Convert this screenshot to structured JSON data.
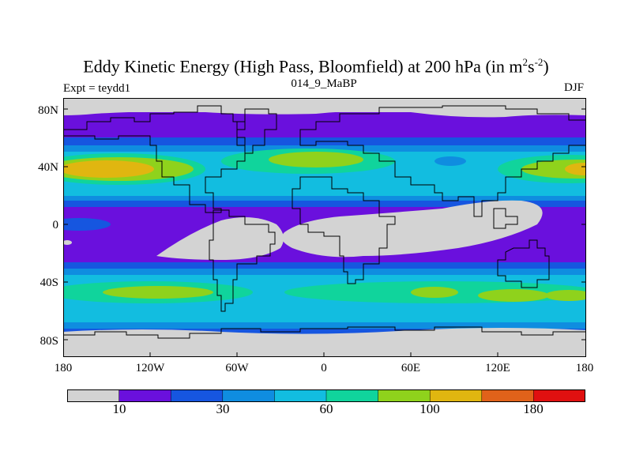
{
  "header": {
    "title_main": "Eddy Kinetic Energy (High Pass, Bloomfield) at 200 hPa (in m",
    "title_sup1": "2",
    "title_mid": "s",
    "title_sup2": "-2",
    "title_end": ")",
    "subtitle": "014_9_MaBP",
    "left_label": "Expt = teydd1",
    "right_label": "DJF"
  },
  "axes": {
    "lat_labels": [
      "80N",
      "40N",
      "0",
      "40S",
      "80S"
    ],
    "lon_labels": [
      "180",
      "120W",
      "60W",
      "0",
      "60E",
      "120E",
      "180"
    ]
  },
  "colorbar": {
    "colors": [
      "#d3d3d3",
      "#6a10dd",
      "#1656e0",
      "#0f8de0",
      "#12bde0",
      "#10d49c",
      "#8fd21c",
      "#e0b610",
      "#e0621a",
      "#e01010"
    ],
    "tick_labels": [
      "10",
      "30",
      "60",
      "100",
      "180"
    ]
  },
  "colors": {
    "land_outline": "#000000",
    "frame": "#000000"
  }
}
